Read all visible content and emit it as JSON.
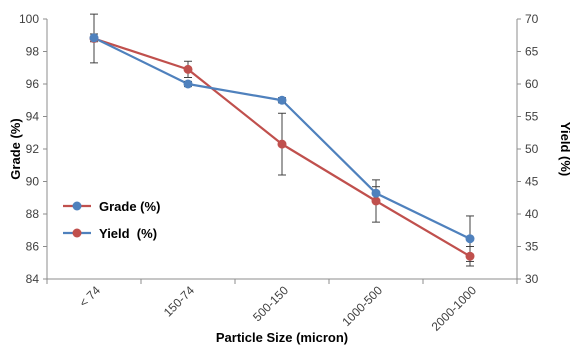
{
  "chart_data": {
    "type": "line",
    "title": "",
    "xlabel": "Particle Size (micron)",
    "ylabel_left": "Grade (%)",
    "ylabel_right": "Yield  (%)",
    "categories": [
      "< 74",
      "150-74",
      "500-150",
      "1000-500",
      "2000-1000"
    ],
    "y_left": {
      "min": 84,
      "max": 100,
      "step": 2,
      "ticks": [
        "84",
        "86",
        "88",
        "90",
        "92",
        "94",
        "96",
        "98",
        "100"
      ]
    },
    "y_right": {
      "min": 30,
      "max": 70,
      "step": 5,
      "ticks": [
        "30",
        "35",
        "40",
        "45",
        "50",
        "55",
        "60",
        "65",
        "70"
      ]
    },
    "grid": false,
    "legend_position": "left-middle",
    "series": [
      {
        "name": "Grade (%)",
        "axis": "left",
        "color": "#c0504d",
        "values": [
          98.8,
          96.9,
          92.3,
          88.8,
          85.4
        ],
        "error": [
          1.5,
          0.5,
          1.9,
          1.3,
          0.6
        ]
      },
      {
        "name": "Yield  (%)",
        "axis": "right",
        "color": "#4f81bd",
        "values": [
          67.1,
          60.0,
          57.5,
          43.2,
          36.2
        ],
        "error": [
          0.6,
          0.4,
          0.4,
          1.0,
          3.5
        ]
      }
    ]
  }
}
